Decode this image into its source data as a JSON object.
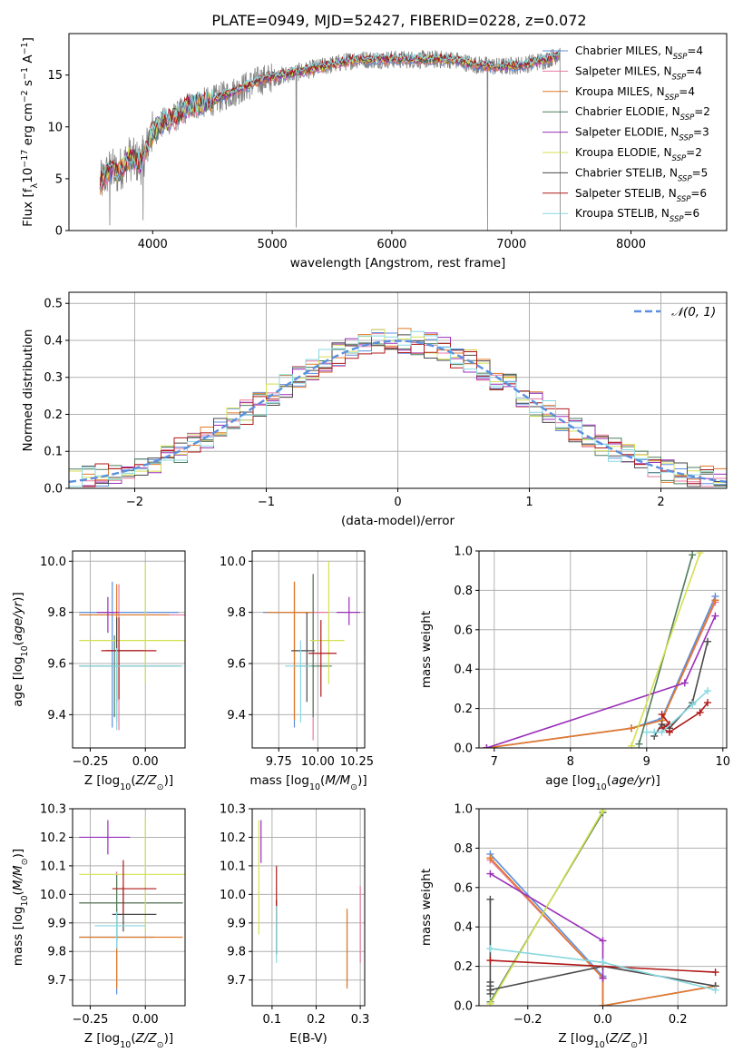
{
  "figure_title": "PLATE=0949, MJD=52427, FIBERID=0228, z=0.072",
  "models": [
    {
      "name": "Chabrier MILES",
      "n": "4",
      "color": "#5b8fe0"
    },
    {
      "name": "Salpeter MILES",
      "n": "4",
      "color": "#e87aa0"
    },
    {
      "name": "Kroupa MILES",
      "n": "4",
      "color": "#e07a28"
    },
    {
      "name": "Chabrier ELODIE",
      "n": "2",
      "color": "#4e7d5b"
    },
    {
      "name": "Salpeter ELODIE",
      "n": "3",
      "color": "#9a2fb8"
    },
    {
      "name": "Kroupa ELODIE",
      "n": "2",
      "color": "#d4e050"
    },
    {
      "name": "Chabrier STELIB",
      "n": "5",
      "color": "#4a4a4a"
    },
    {
      "name": "Salpeter STELIB",
      "n": "6",
      "color": "#b01818"
    },
    {
      "name": "Kroupa STELIB",
      "n": "6",
      "color": "#88d8e0"
    }
  ],
  "chart_data": [
    {
      "id": "spectrum",
      "type": "line",
      "xlabel": "wavelength [Angstrom, rest frame]",
      "ylabel": "Flux [f_λ10^-17 erg cm^-2 s^-1 A^-1]",
      "xlim": [
        3300,
        8800
      ],
      "ylim": [
        0,
        19
      ],
      "xticks": [
        4000,
        5000,
        6000,
        7000,
        8000
      ],
      "yticks": [
        0,
        5,
        10,
        15
      ],
      "data_color": "#808080",
      "data_range": [
        3560,
        7410
      ],
      "continuum": {
        "x": [
          3560,
          3650,
          3700,
          3800,
          3900,
          4000,
          4100,
          4200,
          4300,
          4500,
          4700,
          4900,
          5100,
          5300,
          5500,
          5700,
          5900,
          6100,
          6300,
          6500,
          6700,
          6900,
          7100,
          7300,
          7400
        ],
        "y": [
          4.5,
          6.0,
          5.5,
          7.0,
          6.5,
          9.5,
          10.5,
          11.0,
          12.0,
          12.5,
          13.5,
          14.5,
          15.0,
          15.5,
          16.0,
          16.5,
          16.5,
          16.5,
          16.5,
          16.5,
          16.0,
          15.8,
          16.0,
          16.5,
          17.0
        ]
      },
      "legend_position": "upper right"
    },
    {
      "id": "residuals",
      "type": "histogram",
      "xlabel": "(data-model)/error",
      "ylabel": "Normed distribution",
      "xlim": [
        -2.5,
        2.5
      ],
      "ylim": [
        0,
        0.53
      ],
      "xticks": [
        -2,
        -1,
        0,
        1,
        2
      ],
      "yticks": [
        0.0,
        0.1,
        0.2,
        0.3,
        0.4,
        0.5
      ],
      "grid": true,
      "bin_width": 0.1,
      "reference": {
        "label": "𝒩(0, 1)",
        "mean": 0,
        "sigma": 1,
        "color": "#5b8fe0"
      },
      "legend_position": "upper right"
    },
    {
      "id": "age-vs-z",
      "type": "errorbar",
      "xlabel": "Z [log10(Z/Z⊙)]",
      "ylabel": "age [log10(age/yr)]",
      "xlim": [
        -0.33,
        0.18
      ],
      "ylim": [
        9.27,
        10.04
      ],
      "xticks": [
        -0.25,
        0.0
      ],
      "yticks": [
        9.4,
        9.6,
        9.8,
        10.0
      ],
      "grid": true,
      "points": [
        {
          "model": 0,
          "x": -0.15,
          "xerr": [
            0.15,
            0.3
          ],
          "y": 9.8,
          "yerr": [
            0.45,
            0.12
          ]
        },
        {
          "model": 1,
          "x": -0.12,
          "xerr": [
            0.18,
            0.3
          ],
          "y": 9.79,
          "yerr": [
            0.45,
            0.12
          ]
        },
        {
          "model": 2,
          "x": -0.13,
          "xerr": [
            0.17,
            0.24
          ],
          "y": 9.79,
          "yerr": [
            0.42,
            0.12
          ]
        },
        {
          "model": 3,
          "x": -0.14,
          "xerr": [
            0.16,
            0.3
          ],
          "y": 9.59,
          "yerr": [
            0.2,
            0.12
          ]
        },
        {
          "model": 4,
          "x": -0.17,
          "xerr": [
            0.05,
            0.05
          ],
          "y": 9.8,
          "yerr": [
            0.08,
            0.06
          ]
        },
        {
          "model": 5,
          "x": 0.0,
          "xerr": [
            0.3,
            0.25
          ],
          "y": 9.69,
          "yerr": [
            0.17,
            0.3
          ]
        },
        {
          "model": 6,
          "x": -0.13,
          "xerr": [
            0.05,
            0.12
          ],
          "y": 9.65,
          "yerr": [
            0.2,
            0.13
          ]
        },
        {
          "model": 7,
          "x": -0.12,
          "xerr": [
            0.08,
            0.17
          ],
          "y": 9.65,
          "yerr": [
            0.19,
            0.13
          ]
        },
        {
          "model": 8,
          "x": -0.13,
          "xerr": [
            0.17,
            0.3
          ],
          "y": 9.59,
          "yerr": [
            0.25,
            0.07
          ]
        }
      ]
    },
    {
      "id": "age-vs-mass",
      "type": "errorbar",
      "xlabel": "mass [log10(M/M⊙)]",
      "ylabel": "",
      "xlim": [
        9.58,
        10.3
      ],
      "ylim": [
        9.27,
        10.04
      ],
      "xticks": [
        9.75,
        10.0,
        10.25
      ],
      "yticks": [
        9.4,
        9.6,
        9.8,
        10.0
      ],
      "grid": true,
      "points": [
        {
          "model": 0,
          "x": 9.85,
          "xerr": [
            0.2,
            0.1
          ],
          "y": 9.8,
          "yerr": [
            0.45,
            0.12
          ]
        },
        {
          "model": 1,
          "x": 9.97,
          "xerr": [
            0.15,
            0.1
          ],
          "y": 9.8,
          "yerr": [
            0.5,
            0.15
          ]
        },
        {
          "model": 2,
          "x": 9.85,
          "xerr": [
            0.18,
            0.12
          ],
          "y": 9.8,
          "yerr": [
            0.42,
            0.12
          ]
        },
        {
          "model": 3,
          "x": 9.97,
          "xerr": [
            0.12,
            0.12
          ],
          "y": 9.59,
          "yerr": [
            0.2,
            0.36
          ]
        },
        {
          "model": 4,
          "x": 10.2,
          "xerr": [
            0.08,
            0.07
          ],
          "y": 9.8,
          "yerr": [
            0.05,
            0.06
          ]
        },
        {
          "model": 5,
          "x": 10.07,
          "xerr": [
            0.12,
            0.1
          ],
          "y": 9.69,
          "yerr": [
            0.17,
            0.31
          ]
        },
        {
          "model": 6,
          "x": 9.93,
          "xerr": [
            0.1,
            0.05
          ],
          "y": 9.65,
          "yerr": [
            0.2,
            0.15
          ]
        },
        {
          "model": 7,
          "x": 10.02,
          "xerr": [
            0.08,
            0.1
          ],
          "y": 9.64,
          "yerr": [
            0.17,
            0.13
          ]
        },
        {
          "model": 8,
          "x": 9.89,
          "xerr": [
            0.1,
            0.07
          ],
          "y": 9.59,
          "yerr": [
            0.22,
            0.1
          ]
        }
      ]
    },
    {
      "id": "weight-vs-age",
      "type": "line",
      "xlabel": "age [log10(age/yr)]",
      "ylabel": "mass weight",
      "xlim": [
        6.8,
        10.05
      ],
      "ylim": [
        0,
        1.0
      ],
      "xticks": [
        7,
        8,
        9,
        10
      ],
      "yticks": [
        0.0,
        0.2,
        0.4,
        0.6,
        0.8,
        1.0
      ],
      "grid": true,
      "series": [
        {
          "model": 0,
          "x": [
            6.9,
            8.8,
            9.2,
            9.9
          ],
          "y": [
            0.0,
            0.1,
            0.15,
            0.77
          ]
        },
        {
          "model": 1,
          "x": [
            6.9,
            8.8,
            9.2,
            9.9
          ],
          "y": [
            0.0,
            0.1,
            0.14,
            0.74
          ]
        },
        {
          "model": 2,
          "x": [
            6.9,
            8.8,
            9.2,
            9.9
          ],
          "y": [
            0.0,
            0.1,
            0.14,
            0.75
          ]
        },
        {
          "model": 3,
          "x": [
            8.9,
            9.6
          ],
          "y": [
            0.02,
            0.98
          ]
        },
        {
          "model": 4,
          "x": [
            6.9,
            9.5,
            9.9
          ],
          "y": [
            0.0,
            0.33,
            0.67
          ]
        },
        {
          "model": 5,
          "x": [
            8.8,
            9.7
          ],
          "y": [
            0.01,
            0.99
          ]
        },
        {
          "model": 6,
          "x": [
            9.1,
            9.2,
            9.3,
            9.6,
            9.8
          ],
          "y": [
            0.06,
            0.12,
            0.1,
            0.23,
            0.54
          ]
        },
        {
          "model": 7,
          "x": [
            9.2,
            9.3,
            9.2,
            9.3,
            9.7,
            9.8
          ],
          "y": [
            0.17,
            0.12,
            0.1,
            0.08,
            0.18,
            0.23
          ]
        },
        {
          "model": 8,
          "x": [
            9.0,
            9.1,
            9.2,
            9.6,
            9.8
          ],
          "y": [
            0.08,
            0.08,
            0.08,
            0.22,
            0.29
          ]
        }
      ]
    },
    {
      "id": "mass-vs-z",
      "type": "errorbar",
      "xlabel": "Z [log10(Z/Z⊙)]",
      "ylabel": "mass [log10(M/M⊙)]",
      "xlim": [
        -0.33,
        0.18
      ],
      "ylim": [
        9.61,
        10.3
      ],
      "xticks": [
        -0.25,
        0.0
      ],
      "yticks": [
        9.7,
        9.8,
        9.9,
        10.0,
        10.1,
        10.2,
        10.3
      ],
      "grid": true,
      "points": [
        {
          "model": 0,
          "x": -0.13,
          "xerr": [
            0.17,
            0.17
          ],
          "y": 9.85,
          "yerr": [
            0.2,
            0.09
          ]
        },
        {
          "model": 1,
          "x": -0.13,
          "xerr": [
            0.17,
            0.3
          ],
          "y": 9.97,
          "yerr": [
            0.13,
            0.11
          ]
        },
        {
          "model": 2,
          "x": -0.13,
          "xerr": [
            0.17,
            0.3
          ],
          "y": 9.85,
          "yerr": [
            0.18,
            0.1
          ]
        },
        {
          "model": 3,
          "x": -0.13,
          "xerr": [
            0.17,
            0.3
          ],
          "y": 9.97,
          "yerr": [
            0.13,
            0.1
          ]
        },
        {
          "model": 4,
          "x": -0.17,
          "xerr": [
            0.13,
            0.1
          ],
          "y": 10.2,
          "yerr": [
            0.06,
            0.06
          ]
        },
        {
          "model": 5,
          "x": 0.0,
          "xerr": [
            0.3,
            0.2
          ],
          "y": 10.07,
          "yerr": [
            0.2,
            0.2
          ]
        },
        {
          "model": 6,
          "x": -0.1,
          "xerr": [
            0.05,
            0.15
          ],
          "y": 9.93,
          "yerr": [
            0.06,
            0.1
          ]
        },
        {
          "model": 7,
          "x": -0.1,
          "xerr": [
            0.05,
            0.15
          ],
          "y": 10.02,
          "yerr": [
            0.09,
            0.1
          ]
        },
        {
          "model": 8,
          "x": -0.13,
          "xerr": [
            0.1,
            0.13
          ],
          "y": 9.89,
          "yerr": [
            0.08,
            0.05
          ]
        }
      ]
    },
    {
      "id": "mass-vs-ebv",
      "type": "errorbar",
      "xlabel": "E(B-V)",
      "ylabel": "",
      "xlim": [
        0.055,
        0.31
      ],
      "ylim": [
        9.61,
        10.3
      ],
      "xticks": [
        0.1,
        0.2,
        0.3
      ],
      "yticks": [
        9.7,
        9.8,
        9.9,
        10.0,
        10.1,
        10.2,
        10.3
      ],
      "grid": true,
      "points": [
        {
          "model": 0,
          "x": 0.27,
          "y": 9.85,
          "yerr": [
            0.17,
            0.09
          ]
        },
        {
          "model": 1,
          "x": 0.3,
          "y": 9.89,
          "yerr": [
            0.13,
            0.14
          ]
        },
        {
          "model": 2,
          "x": 0.27,
          "y": 9.85,
          "yerr": [
            0.18,
            0.1
          ]
        },
        {
          "model": 3,
          "x": 0.11,
          "y": 9.88,
          "yerr": [
            0.09,
            0.1
          ]
        },
        {
          "model": 4,
          "x": 0.075,
          "y": 10.19,
          "yerr": [
            0.08,
            0.07
          ]
        },
        {
          "model": 5,
          "x": 0.07,
          "y": 10.05,
          "yerr": [
            0.19,
            0.21
          ]
        },
        {
          "model": 6,
          "x": 0.11,
          "y": 9.9,
          "yerr": [
            0.11,
            0.08
          ]
        },
        {
          "model": 7,
          "x": 0.11,
          "y": 10.0,
          "yerr": [
            0.1,
            0.1
          ]
        },
        {
          "model": 8,
          "x": 0.11,
          "y": 9.86,
          "yerr": [
            0.1,
            0.1
          ]
        }
      ]
    },
    {
      "id": "weight-vs-z",
      "type": "line",
      "xlabel": "Z [log10(Z/Z⊙)]",
      "ylabel": "mass weight",
      "xlim": [
        -0.33,
        0.33
      ],
      "ylim": [
        0,
        1.0
      ],
      "xticks": [
        -0.2,
        0.0,
        0.2
      ],
      "yticks": [
        0.0,
        0.2,
        0.4,
        0.6,
        0.8,
        1.0
      ],
      "grid": true,
      "series": [
        {
          "model": 0,
          "x": [
            -0.3,
            0.0,
            0.0,
            0.3
          ],
          "y": [
            0.77,
            0.15,
            0.0,
            0.1
          ]
        },
        {
          "model": 1,
          "x": [
            -0.3,
            0.0,
            0.0,
            0.3
          ],
          "y": [
            0.74,
            0.14,
            0.0,
            0.1
          ]
        },
        {
          "model": 2,
          "x": [
            -0.3,
            0.0,
            0.0,
            0.3
          ],
          "y": [
            0.75,
            0.14,
            0.0,
            0.1
          ]
        },
        {
          "model": 3,
          "x": [
            -0.3,
            0.0
          ],
          "y": [
            0.02,
            0.98
          ]
        },
        {
          "model": 4,
          "x": [
            -0.3,
            0.0,
            0.0
          ],
          "y": [
            0.67,
            0.33,
            0.14
          ]
        },
        {
          "model": 5,
          "x": [
            -0.3,
            0.0
          ],
          "y": [
            0.01,
            0.99
          ]
        },
        {
          "model": 6,
          "x": [
            -0.3,
            -0.3,
            -0.3,
            -0.3,
            -0.3,
            0.0,
            0.3
          ],
          "y": [
            0.54,
            0.12,
            0.1,
            0.06,
            0.08,
            0.2,
            0.1
          ]
        },
        {
          "model": 7,
          "x": [
            -0.3,
            0.3
          ],
          "y": [
            0.23,
            0.17
          ]
        },
        {
          "model": 8,
          "x": [
            -0.3,
            0.0,
            0.3
          ],
          "y": [
            0.29,
            0.22,
            0.08
          ]
        }
      ]
    }
  ]
}
